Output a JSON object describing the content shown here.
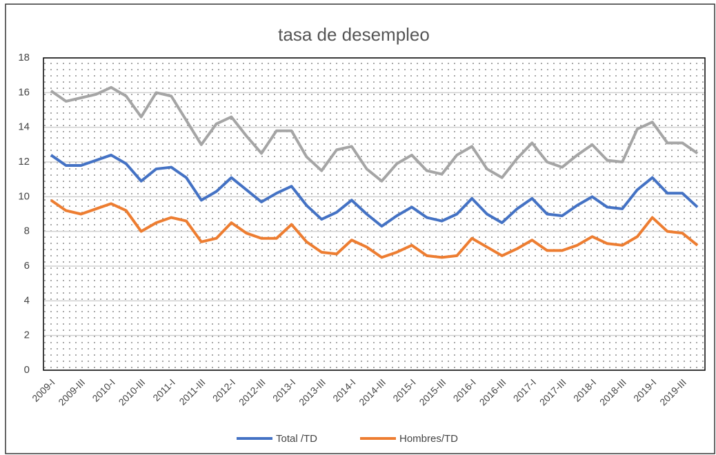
{
  "chart_data": {
    "type": "line",
    "title": "tasa de desempleo",
    "categories": [
      "2009-I",
      null,
      "2009-III",
      null,
      "2010-I",
      null,
      "2010-III",
      null,
      "2011-I",
      null,
      "2011-III",
      null,
      "2012-I",
      null,
      "2012-III",
      null,
      "2013-I",
      null,
      "2013-III",
      null,
      "2014-I",
      null,
      "2014-III",
      null,
      "2015-I",
      null,
      "2015-III",
      null,
      "2016-I",
      null,
      "2016-III",
      null,
      "2017-I",
      null,
      "2017-III",
      null,
      "2018-I",
      null,
      "2018-III",
      null,
      "2019-I",
      null,
      "2019-III",
      null
    ],
    "series": [
      {
        "color": "#a5a5a5",
        "values": [
          16.1,
          15.5,
          15.7,
          15.9,
          16.3,
          15.8,
          14.6,
          16.0,
          15.8,
          14.4,
          13.0,
          14.2,
          14.6,
          13.5,
          12.5,
          13.8,
          13.8,
          12.3,
          11.5,
          12.7,
          12.9,
          11.6,
          10.9,
          11.9,
          12.4,
          11.5,
          11.3,
          12.4,
          12.9,
          11.6,
          11.1,
          12.2,
          13.1,
          12.0,
          11.7,
          12.4,
          13.0,
          12.1,
          12.0,
          13.9,
          14.3,
          13.1,
          13.1,
          12.5
        ]
      },
      {
        "name": "Total /TD",
        "color": "#4472c4",
        "values": [
          12.4,
          11.8,
          11.8,
          12.1,
          12.4,
          11.9,
          10.9,
          11.6,
          11.7,
          11.1,
          9.8,
          10.3,
          11.1,
          10.4,
          9.7,
          10.2,
          10.6,
          9.5,
          8.7,
          9.1,
          9.8,
          9.0,
          8.3,
          8.9,
          9.4,
          8.8,
          8.6,
          9.0,
          9.9,
          9.0,
          8.5,
          9.3,
          9.9,
          9.0,
          8.9,
          9.5,
          10.0,
          9.4,
          9.3,
          10.4,
          11.1,
          10.2,
          10.2,
          9.4
        ]
      },
      {
        "name": "Hombres/TD",
        "color": "#ed7d31",
        "values": [
          9.8,
          9.2,
          9.0,
          9.3,
          9.6,
          9.2,
          8.0,
          8.5,
          8.8,
          8.6,
          7.4,
          7.6,
          8.5,
          7.9,
          7.6,
          7.6,
          8.4,
          7.4,
          6.8,
          6.7,
          7.5,
          7.1,
          6.5,
          6.8,
          7.2,
          6.6,
          6.5,
          6.6,
          7.6,
          7.1,
          6.6,
          7.0,
          7.5,
          6.9,
          6.9,
          7.2,
          7.7,
          7.3,
          7.2,
          7.7,
          8.8,
          8.0,
          7.9,
          7.2
        ]
      }
    ],
    "ylim": [
      0,
      18
    ],
    "yticks": [
      0,
      2,
      4,
      6,
      8,
      10,
      12,
      14,
      16,
      18
    ],
    "grid": true,
    "legend": "bottom"
  }
}
